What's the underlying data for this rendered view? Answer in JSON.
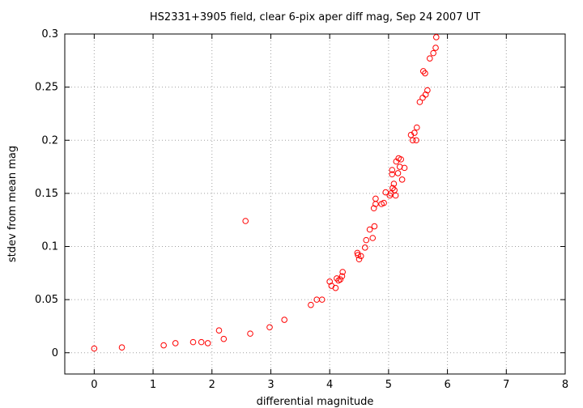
{
  "chart_data": {
    "type": "scatter",
    "title": "HS2331+3905 field, clear 6-pix aper diff mag, Sep 24 2007 UT",
    "xlabel": "differential magnitude",
    "ylabel": "stdev from mean mag",
    "xlim": [
      -0.5,
      8
    ],
    "ylim": [
      -0.02,
      0.3
    ],
    "xticks": [
      "0",
      "1",
      "2",
      "3",
      "4",
      "5",
      "6",
      "7",
      "8"
    ],
    "yticks": [
      "0",
      "0.05",
      "0.1",
      "0.15",
      "0.2",
      "0.25",
      "0.3"
    ],
    "grid": true,
    "marker_color": "#ff0000",
    "points": [
      [
        0.0,
        0.004
      ],
      [
        0.47,
        0.005
      ],
      [
        1.18,
        0.007
      ],
      [
        1.38,
        0.009
      ],
      [
        1.68,
        0.01
      ],
      [
        1.82,
        0.01
      ],
      [
        1.93,
        0.009
      ],
      [
        2.12,
        0.021
      ],
      [
        2.2,
        0.013
      ],
      [
        2.57,
        0.124
      ],
      [
        2.65,
        0.018
      ],
      [
        2.98,
        0.024
      ],
      [
        3.23,
        0.031
      ],
      [
        3.68,
        0.045
      ],
      [
        3.78,
        0.05
      ],
      [
        3.87,
        0.05
      ],
      [
        4.0,
        0.067
      ],
      [
        4.03,
        0.063
      ],
      [
        4.1,
        0.061
      ],
      [
        4.12,
        0.07
      ],
      [
        4.15,
        0.068
      ],
      [
        4.18,
        0.069
      ],
      [
        4.21,
        0.072
      ],
      [
        4.22,
        0.076
      ],
      [
        4.47,
        0.094
      ],
      [
        4.48,
        0.092
      ],
      [
        4.5,
        0.088
      ],
      [
        4.53,
        0.091
      ],
      [
        4.6,
        0.099
      ],
      [
        4.62,
        0.106
      ],
      [
        4.68,
        0.116
      ],
      [
        4.73,
        0.108
      ],
      [
        4.76,
        0.119
      ],
      [
        4.75,
        0.136
      ],
      [
        4.78,
        0.14
      ],
      [
        4.78,
        0.145
      ],
      [
        4.88,
        0.14
      ],
      [
        4.92,
        0.141
      ],
      [
        4.95,
        0.151
      ],
      [
        5.02,
        0.148
      ],
      [
        5.04,
        0.15
      ],
      [
        5.06,
        0.168
      ],
      [
        5.06,
        0.172
      ],
      [
        5.07,
        0.155
      ],
      [
        5.09,
        0.159
      ],
      [
        5.1,
        0.153
      ],
      [
        5.12,
        0.148
      ],
      [
        5.13,
        0.18
      ],
      [
        5.16,
        0.169
      ],
      [
        5.17,
        0.183
      ],
      [
        5.19,
        0.175
      ],
      [
        5.21,
        0.182
      ],
      [
        5.23,
        0.163
      ],
      [
        5.27,
        0.174
      ],
      [
        5.38,
        0.205
      ],
      [
        5.41,
        0.2
      ],
      [
        5.44,
        0.207
      ],
      [
        5.47,
        0.2
      ],
      [
        5.48,
        0.212
      ],
      [
        5.53,
        0.236
      ],
      [
        5.58,
        0.24
      ],
      [
        5.59,
        0.265
      ],
      [
        5.62,
        0.263
      ],
      [
        5.63,
        0.243
      ],
      [
        5.66,
        0.247
      ],
      [
        5.7,
        0.277
      ],
      [
        5.76,
        0.282
      ],
      [
        5.8,
        0.287
      ],
      [
        5.81,
        0.297
      ]
    ]
  }
}
